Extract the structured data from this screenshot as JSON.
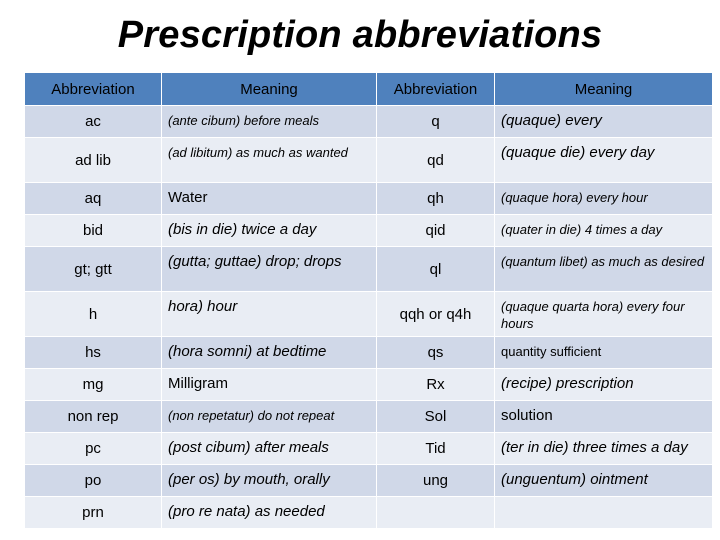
{
  "title": "Prescription abbreviations",
  "headers": [
    "Abbreviation",
    "Meaning",
    "Abbreviation",
    "Meaning"
  ],
  "rows": [
    {
      "a1": "ac",
      "m1": "(ante cibum) before meals",
      "a2": "q",
      "m2": "(quaque) every"
    },
    {
      "a1": "ad lib",
      "m1": "(ad libitum) as much as wanted",
      "a2": "qd",
      "m2": "(quaque die) every day"
    },
    {
      "a1": "aq",
      "m1": "Water",
      "a2": "qh",
      "m2": "(quaque hora) every hour"
    },
    {
      "a1": "bid",
      "m1": "(bis in die) twice a day",
      "a2": "qid",
      "m2": "(quater in die) 4 times a day"
    },
    {
      "a1": "gt; gtt",
      "m1": "(gutta; guttae) drop; drops",
      "a2": "ql",
      "m2": "(quantum libet) as much as desired"
    },
    {
      "a1": "h",
      "m1": "hora) hour",
      "a2": "qqh or q4h",
      "m2": "(quaque quarta hora) every four hours"
    },
    {
      "a1": "hs",
      "m1": "(hora somni) at bedtime",
      "a2": "qs",
      "m2": "quantity sufficient"
    },
    {
      "a1": "mg",
      "m1": "Milligram",
      "a2": "Rx",
      "m2": "(recipe) prescription"
    },
    {
      "a1": "non rep",
      "m1": "(non repetatur) do not repeat",
      "a2": "Sol",
      "m2": "solution"
    },
    {
      "a1": "pc",
      "m1": "(post cibum) after meals",
      "a2": "Tid",
      "m2": "(ter in die) three times a day"
    },
    {
      "a1": "po",
      "m1": "(per os) by mouth, orally",
      "a2": "ung",
      "m2": "(unguentum) ointment"
    },
    {
      "a1": "prn",
      "m1": "(pro re nata) as needed",
      "a2": "",
      "m2": ""
    }
  ],
  "colors": {
    "header": "#4f81bd",
    "row_odd": "#d0d8e8",
    "row_even": "#e9edf4"
  }
}
